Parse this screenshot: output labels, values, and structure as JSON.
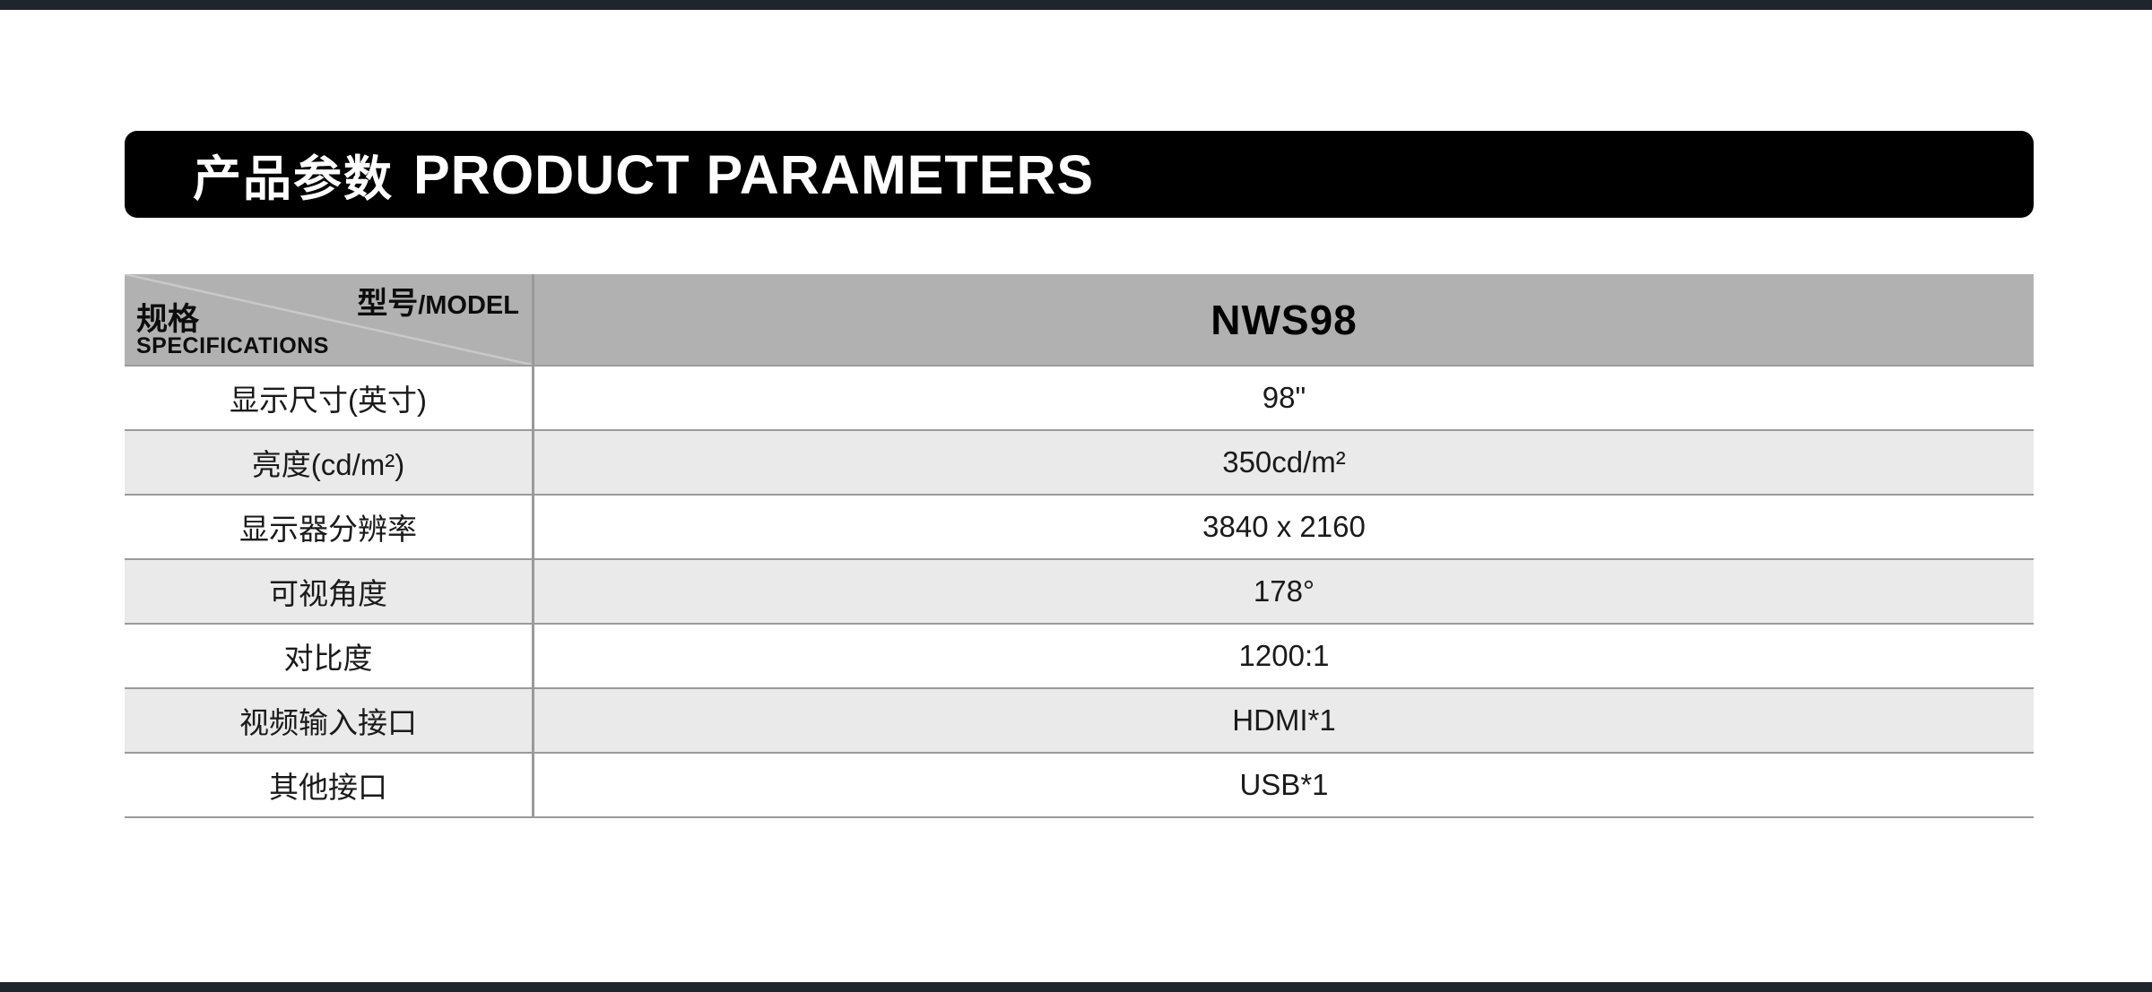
{
  "colors": {
    "frame_bar": "#20242c",
    "banner_bg": "#000000",
    "banner_text": "#ffffff",
    "table_header_bg": "#b1b1b1",
    "alt_row_bg": "#eaeaea",
    "border": "#9a9a9a",
    "diagonal_line": "#c9c9c9"
  },
  "banner": {
    "title_zh": "产品参数",
    "title_en": "PRODUCT PARAMETERS"
  },
  "table": {
    "corner": {
      "spec_zh": "规格",
      "spec_en": "SPECIFICATIONS",
      "model_zh": "型号",
      "model_en": "/MODEL"
    },
    "model_value": "NWS98",
    "rows": [
      {
        "label": "显示尺寸(英寸)",
        "value": "98\""
      },
      {
        "label": "亮度(cd/m²)",
        "value": "350cd/m²"
      },
      {
        "label": "显示器分辨率",
        "value": "3840 x 2160"
      },
      {
        "label": "可视角度",
        "value": "178°"
      },
      {
        "label": "对比度",
        "value": "1200:1"
      },
      {
        "label": "视频输入接口",
        "value": "HDMI*1"
      },
      {
        "label": "其他接口",
        "value": "USB*1"
      }
    ]
  }
}
